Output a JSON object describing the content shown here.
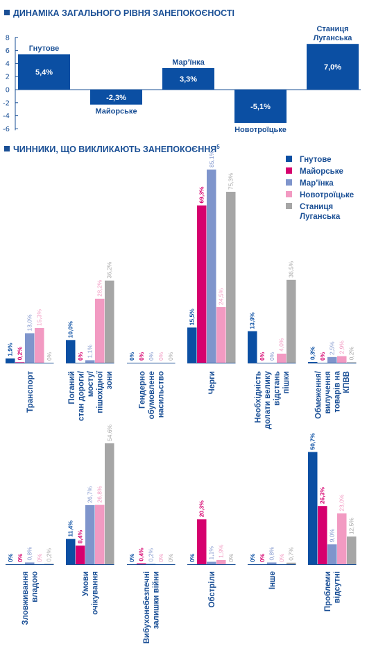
{
  "chart_data": [
    {
      "type": "bar",
      "title": "ДИНАМІКА ЗАГАЛЬНОГО РІВНЯ ЗАНЕПОКОЄНОСТІ",
      "categories": [
        [
          "Гнутове"
        ],
        [
          "Майорське"
        ],
        [
          "Мар’їнка"
        ],
        [
          "Новотроїцьке"
        ],
        [
          "Станиця",
          "Луганська"
        ]
      ],
      "values": [
        5.4,
        -2.3,
        3.3,
        -5.1,
        7.0
      ],
      "value_labels": [
        "5,4%",
        "-2,3%",
        "3,3%",
        "-5,1%",
        "7,0%"
      ],
      "y_ticks": [
        8,
        6,
        4,
        2,
        0,
        -2,
        -4,
        -6
      ],
      "y_tick_labels": [
        "8",
        "6",
        "4",
        "2",
        "0",
        "-2",
        "-4",
        "-6"
      ],
      "ylim": [
        -6,
        8
      ],
      "grid": false,
      "color": "#0b4fa3"
    },
    {
      "type": "bar",
      "title": "ЧИННИКИ, ЩО ВИКЛИКАЮТЬ ЗАНЕПОКОЄННЯ",
      "title_footnote": "5",
      "legend_position": "top-right",
      "series": [
        {
          "name": [
            "Гнутове"
          ],
          "color": "#0b4fa3"
        },
        {
          "name": [
            "Майорське"
          ],
          "color": "#d6006e"
        },
        {
          "name": [
            "Мар’їнка"
          ],
          "color": "#7f95cc"
        },
        {
          "name": [
            "Новотроїцьке"
          ],
          "color": "#f29ac2"
        },
        {
          "name": [
            "Станиця",
            "Луганська"
          ],
          "color": "#a6a6a6"
        }
      ],
      "panels": [
        {
          "ylim": [
            0,
            85.1
          ],
          "categories": [
            {
              "label": [
                "Транспорт"
              ],
              "values": [
                1.9,
                0.2,
                13.0,
                15.3,
                0
              ],
              "labels": [
                "1,9%",
                "0,2%",
                "13,0%",
                "15,3%",
                "0%"
              ]
            },
            {
              "label": [
                "Поганий",
                "стан дороги/",
                "мосту/",
                "пішохідної",
                "зони"
              ],
              "values": [
                10.0,
                0,
                1.1,
                28.2,
                36.2
              ],
              "labels": [
                "10,0%",
                "0%",
                "1,1%",
                "28,2%",
                "36,2%"
              ]
            },
            {
              "label": [
                "Гендерно",
                "обумовлене",
                "насильство"
              ],
              "values": [
                0,
                0,
                0,
                0,
                0
              ],
              "labels": [
                "0%",
                "0%",
                "0%",
                "0%",
                "0%"
              ]
            },
            {
              "label": [
                "Черги"
              ],
              "values": [
                15.5,
                69.3,
                85.1,
                24.5,
                75.3
              ],
              "labels": [
                "15,5%",
                "69,3%",
                "85,1%",
                "24,5%",
                "75,3%"
              ]
            },
            {
              "label": [
                "Необхідність",
                "долати велику",
                "відстань",
                "пішки"
              ],
              "values": [
                13.9,
                0,
                0,
                4.0,
                36.5
              ],
              "labels": [
                "13,9%",
                "0%",
                "0%",
                "4,0%",
                "36,5%"
              ]
            },
            {
              "label": [
                "Обмеження/",
                "вилучення",
                "товарів на",
                "КПВВ"
              ],
              "values": [
                0.3,
                0,
                2.5,
                2.9,
                0.2
              ],
              "labels": [
                "0,3%",
                "0%",
                "2,5%",
                "2,9%",
                "0,2%"
              ]
            }
          ]
        },
        {
          "ylim": [
            0,
            54.6
          ],
          "categories": [
            {
              "label": [
                "Зловживання",
                "владою"
              ],
              "values": [
                0,
                0,
                0.8,
                0,
                0.2
              ],
              "labels": [
                "0%",
                "0%",
                "0,8%",
                "0%",
                "0,2%"
              ]
            },
            {
              "label": [
                "Умови",
                "очікування"
              ],
              "values": [
                11.4,
                8.4,
                26.7,
                26.8,
                54.6
              ],
              "labels": [
                "11,4%",
                "8,4%",
                "26,7%",
                "26,8%",
                "54,6%"
              ]
            },
            {
              "label": [
                "Вибухонебезпечні",
                "залишки війни"
              ],
              "values": [
                0,
                0.4,
                0.2,
                0,
                0
              ],
              "labels": [
                "0%",
                "0,4%",
                "0,2%",
                "0%",
                "0%"
              ]
            },
            {
              "label": [
                "Обстріли"
              ],
              "values": [
                0,
                20.3,
                1.1,
                1.9,
                0
              ],
              "labels": [
                "0%",
                "20,3%",
                "1,1%",
                "1,9%",
                "0%"
              ]
            },
            {
              "label": [
                "Інше"
              ],
              "values": [
                0,
                0,
                0.8,
                0,
                0.7
              ],
              "labels": [
                "0%",
                "0%",
                "0,8%",
                "0%",
                "0,7%"
              ]
            },
            {
              "label": [
                "Проблеми",
                "відсутні"
              ],
              "values": [
                50.7,
                26.3,
                9.0,
                23.0,
                12.5
              ],
              "labels": [
                "50,7%",
                "26,3%",
                "9,0%",
                "23,0%",
                "12,5%"
              ]
            }
          ]
        }
      ]
    }
  ]
}
